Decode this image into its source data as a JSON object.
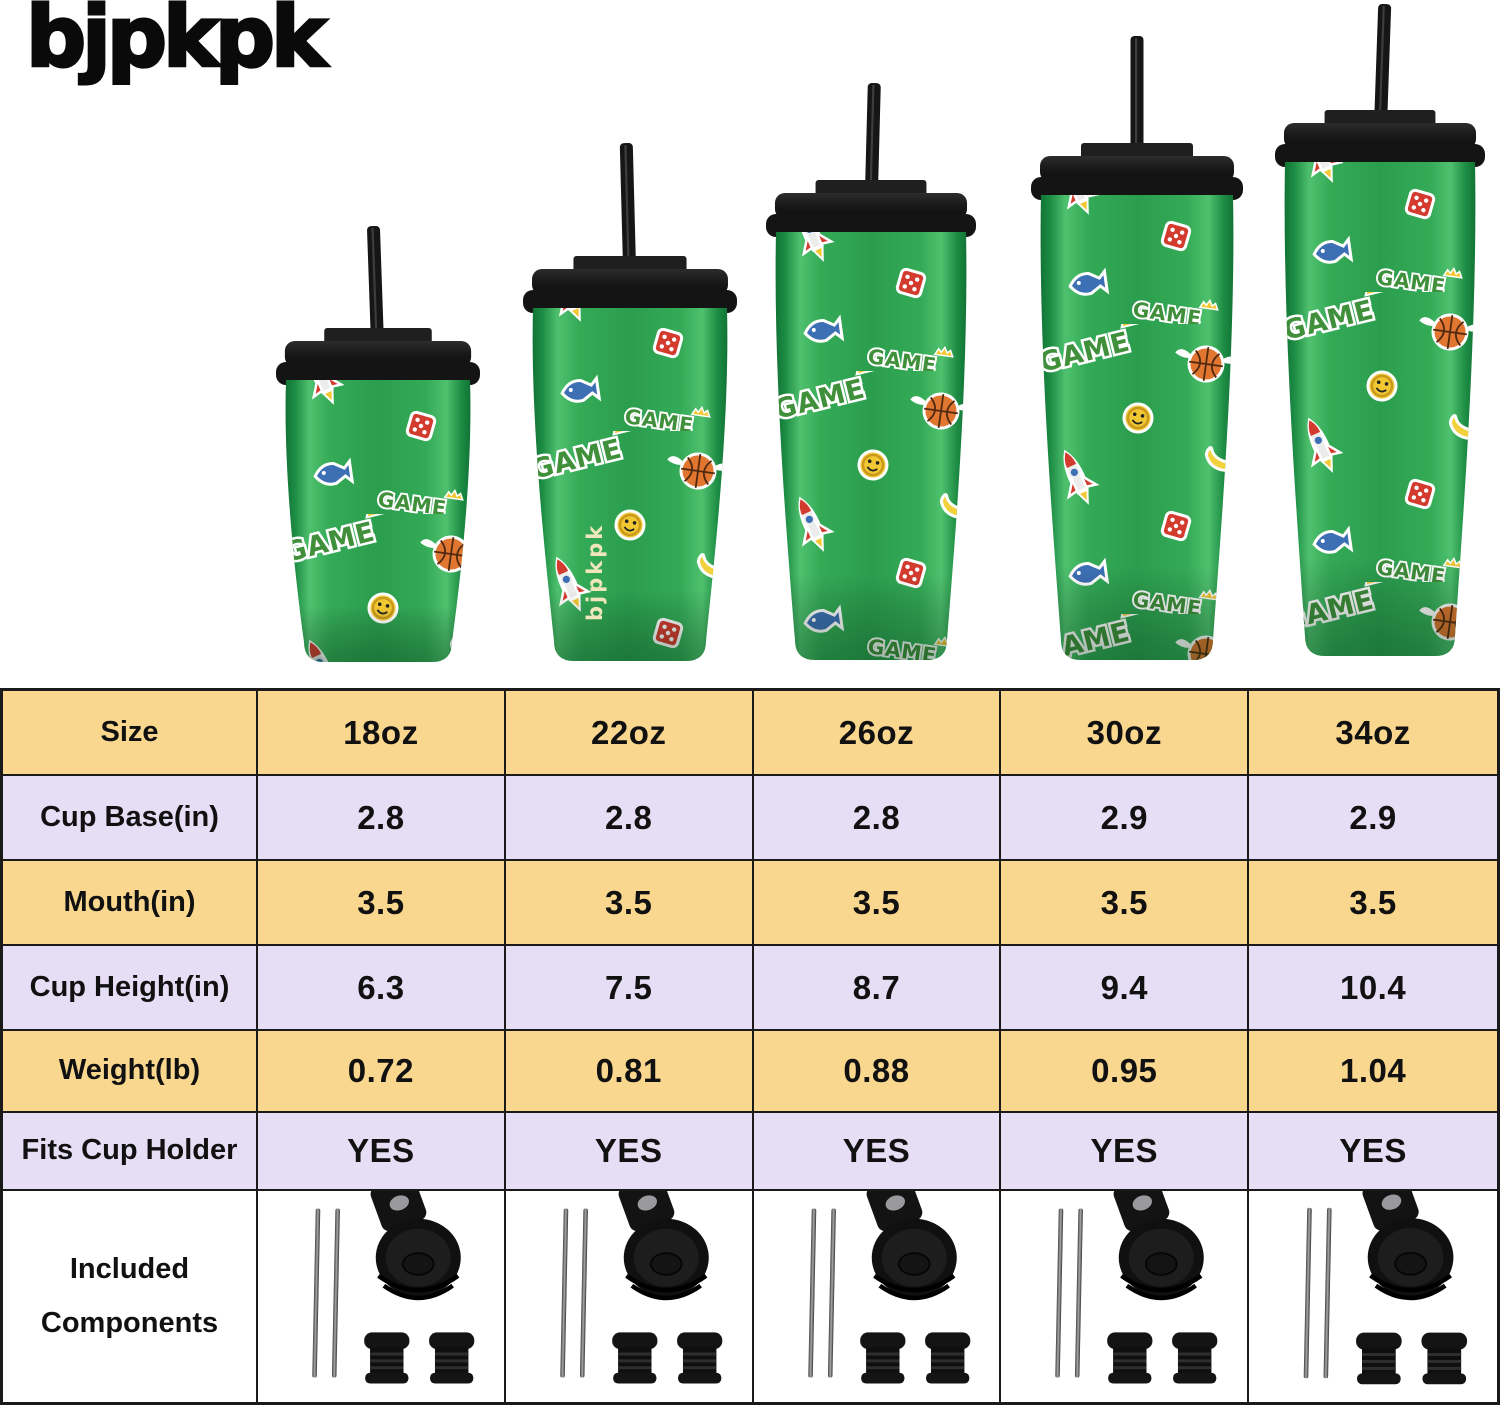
{
  "brand": {
    "logo_text": "bjpkpk"
  },
  "hero": {
    "cup_brand_imprint": "bjpkpk",
    "tumblers": [
      {
        "size_label": "18oz"
      },
      {
        "size_label": "22oz"
      },
      {
        "size_label": "26oz"
      },
      {
        "size_label": "30oz"
      },
      {
        "size_label": "34oz"
      }
    ],
    "sticker_motifs": [
      "game-pixel-text",
      "rocket",
      "winged-basketball",
      "smiley-coin",
      "banana",
      "dice",
      "pixel-fish",
      "star-badge"
    ]
  },
  "table": {
    "rows": [
      {
        "label": "Size",
        "values": [
          "18oz",
          "22oz",
          "26oz",
          "30oz",
          "34oz"
        ]
      },
      {
        "label": "Cup Base(in)",
        "values": [
          "2.8",
          "2.8",
          "2.8",
          "2.9",
          "2.9"
        ]
      },
      {
        "label": "Mouth(in)",
        "values": [
          "3.5",
          "3.5",
          "3.5",
          "3.5",
          "3.5"
        ]
      },
      {
        "label": "Cup Height(in)",
        "values": [
          "6.3",
          "7.5",
          "8.7",
          "9.4",
          "10.4"
        ]
      },
      {
        "label": "Weight(lb)",
        "values": [
          "0.72",
          "0.81",
          "0.88",
          "0.95",
          "1.04"
        ]
      },
      {
        "label": "Fits Cup Holder",
        "values": [
          "YES",
          "YES",
          "YES",
          "YES",
          "YES"
        ]
      },
      {
        "label": "Included Components",
        "type": "components",
        "components": [
          "two-metal-straws",
          "flip-top-lid",
          "two-straw-stoppers"
        ]
      }
    ]
  },
  "colors": {
    "cup_green": "#2B9E4E",
    "cup_green_light": "#4FC16E",
    "cup_green_dark": "#117435",
    "lid_black": "#181818",
    "table_yellow": "#FAD78E",
    "table_lavender": "#E5DEF5",
    "table_border": "#1A1A1A",
    "sticker_red": "#D33B2F",
    "sticker_yellow": "#F2C832",
    "sticker_orange": "#E0762F",
    "sticker_blue": "#3D6FB4",
    "sticker_leaf_green": "#3F8F3B",
    "imprint_cream": "#EFE6BC"
  }
}
